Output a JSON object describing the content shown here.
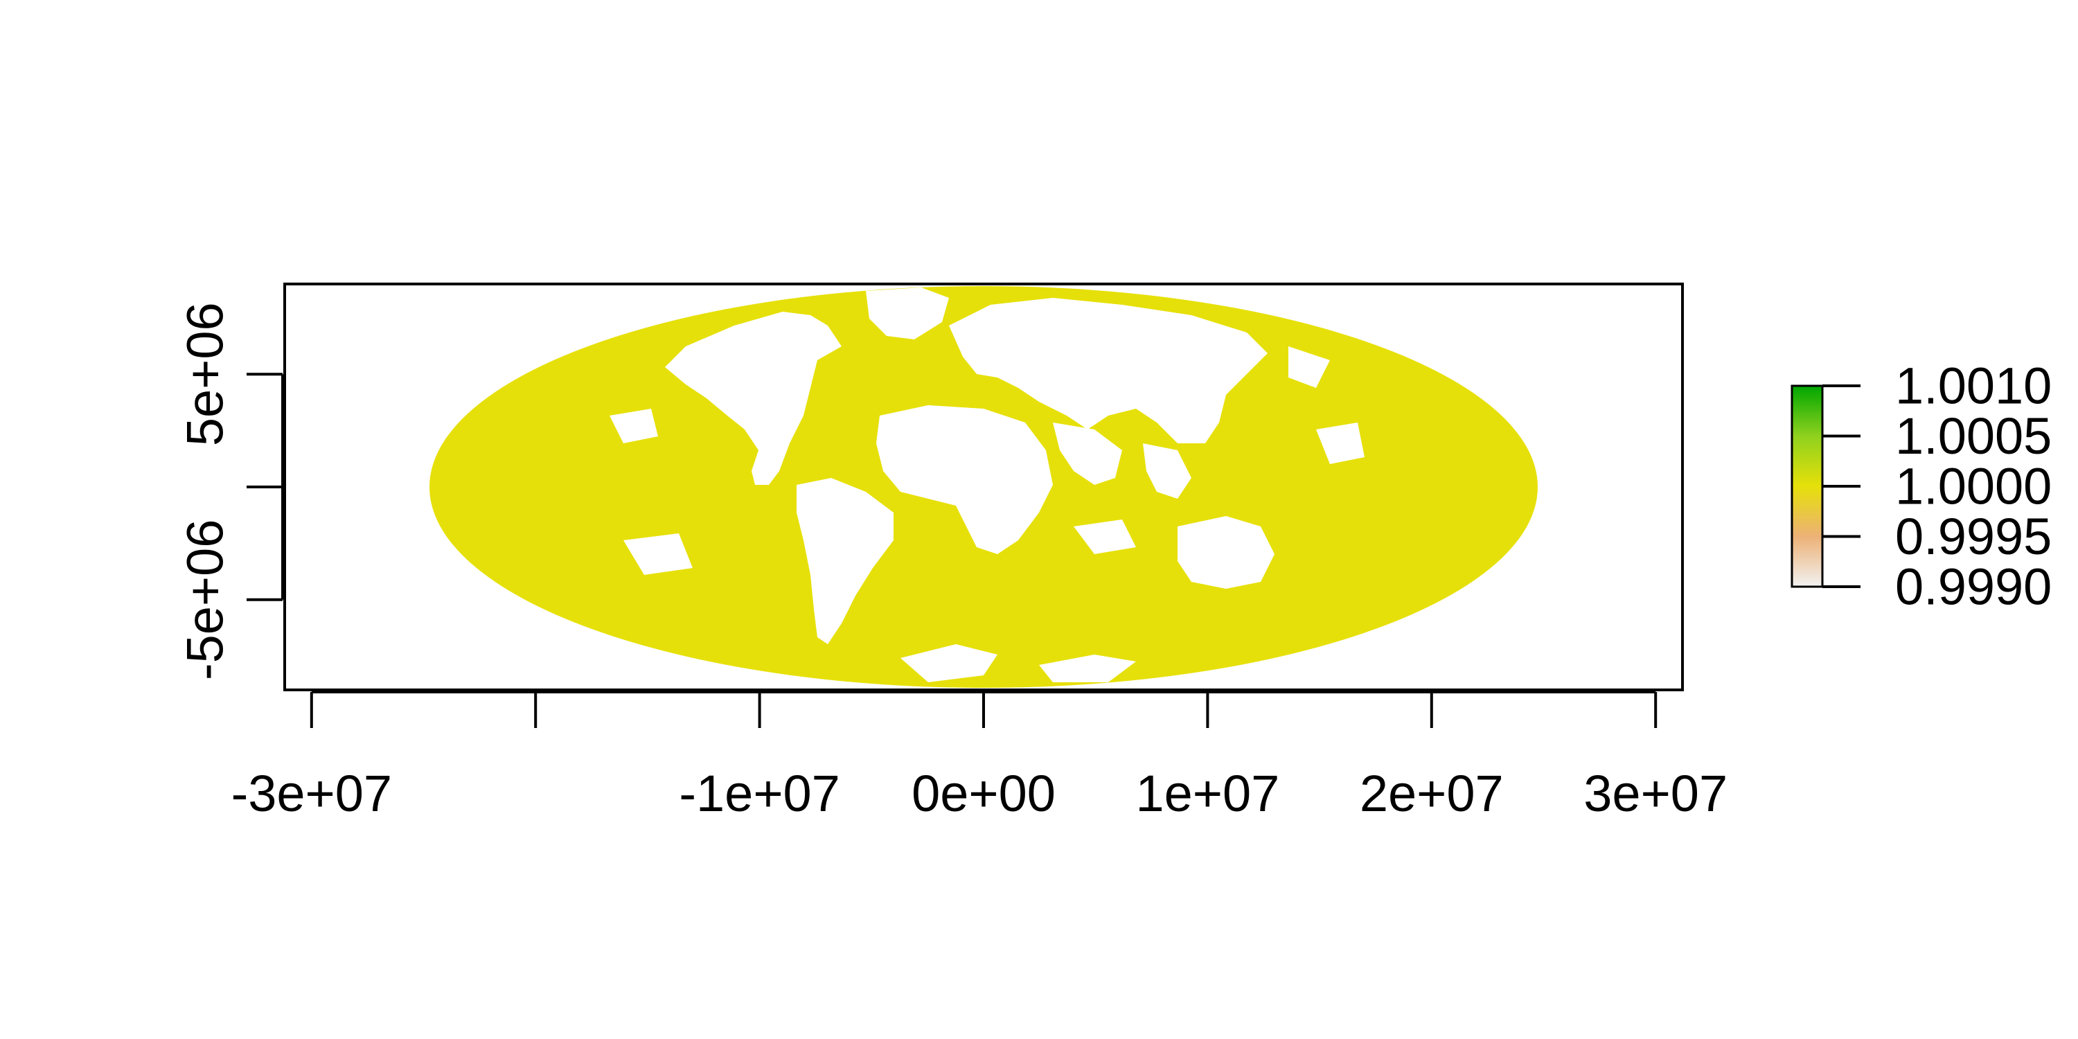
{
  "chart_data": {
    "type": "heatmap",
    "title": "",
    "xlabel": "",
    "ylabel": "",
    "projection": "mollweide",
    "xlim": [
      -31200000,
      31200000
    ],
    "ylim": [
      -9000000,
      9000000
    ],
    "x_ticks": [
      {
        "value": -30000000,
        "label": "-3e+07"
      },
      {
        "value": -20000000,
        "label": ""
      },
      {
        "value": -10000000,
        "label": "-1e+07"
      },
      {
        "value": 0,
        "label": "0e+00"
      },
      {
        "value": 10000000,
        "label": "1e+07"
      },
      {
        "value": 20000000,
        "label": "2e+07"
      },
      {
        "value": 30000000,
        "label": "3e+07"
      }
    ],
    "y_ticks": [
      {
        "value": 5000000,
        "label": "5e+06"
      },
      {
        "value": 0,
        "label": ""
      },
      {
        "value": -5000000,
        "label": "-5e+06"
      }
    ],
    "raster": {
      "description": "global ocean pixels, all values approximately 1.0000",
      "value": 1.0,
      "color": "#e6e00a",
      "extent_x": [
        -18000000,
        18000000
      ],
      "extent_y": [
        -9000000,
        9000000
      ]
    },
    "legend": {
      "placement": "right",
      "min": 0.999,
      "max": 1.001,
      "ticks": [
        {
          "value": 1.001,
          "label": "1.0010"
        },
        {
          "value": 1.0005,
          "label": "1.0005"
        },
        {
          "value": 1.0,
          "label": "1.0000"
        },
        {
          "value": 0.9995,
          "label": "0.9995"
        },
        {
          "value": 0.999,
          "label": "0.9990"
        }
      ],
      "colors": [
        "#f2f2f2",
        "#ecb176",
        "#e6e00a",
        "#8fd11e",
        "#00a600"
      ]
    },
    "grid": false
  }
}
